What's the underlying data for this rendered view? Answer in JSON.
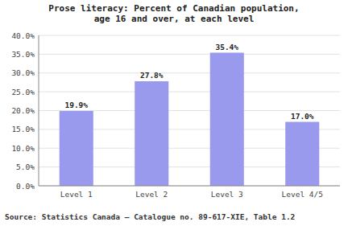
{
  "chart_data": {
    "type": "bar",
    "title": "Prose literacy: Percent of Canadian population,\nage 16 and over, at each level",
    "categories": [
      "Level 1",
      "Level 2",
      "Level 3",
      "Level 4/5"
    ],
    "values": [
      19.9,
      27.8,
      35.4,
      17.0
    ],
    "value_labels": [
      "19.9%",
      "27.8%",
      "35.4%",
      "17.0%"
    ],
    "data_labels": true,
    "color": "#9999ee",
    "ylim": [
      0,
      40
    ],
    "yticks": [
      {
        "value": 0,
        "label": "0.0%"
      },
      {
        "value": 5,
        "label": "5.0%"
      },
      {
        "value": 10,
        "label": "10.0%"
      },
      {
        "value": 15,
        "label": "15.0%"
      },
      {
        "value": 20,
        "label": "20.0%"
      },
      {
        "value": 25,
        "label": "25.0%"
      },
      {
        "value": 30,
        "label": "30.0%"
      },
      {
        "value": 35,
        "label": "35.0%"
      },
      {
        "value": 40,
        "label": "40.0%"
      }
    ],
    "grid": true,
    "source": "Source: Statistics Canada – Catalogue no. 89-617-XIE, Table 1.2"
  }
}
